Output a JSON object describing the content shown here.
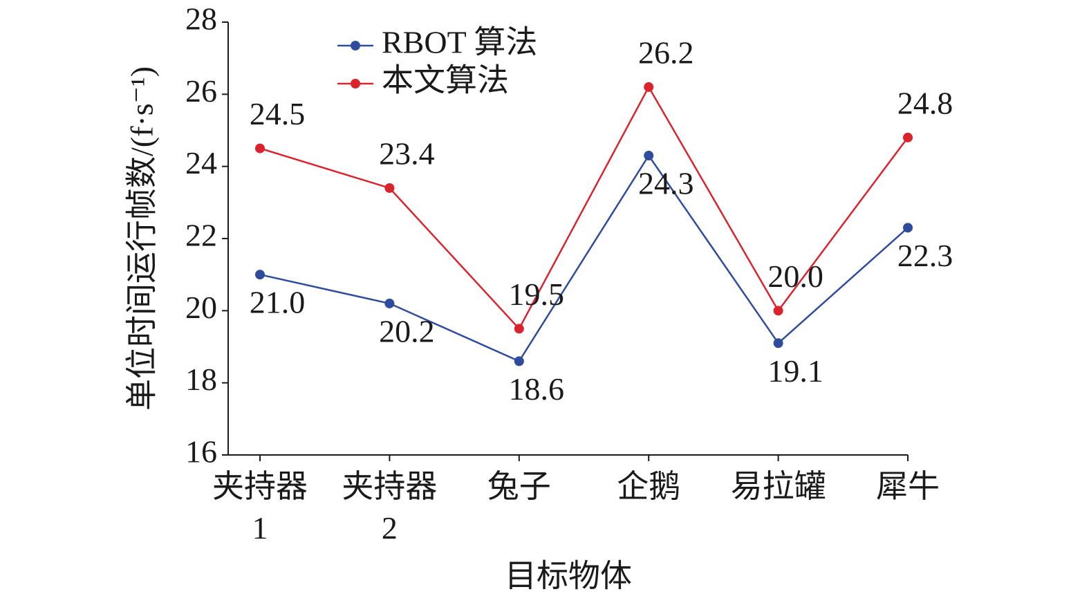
{
  "chart_data": {
    "type": "line",
    "x_label": "目标物体",
    "y_label": "单位时间运行帧数/(f·s⁻¹)",
    "categories": [
      "夹持器 1",
      "夹持器 2",
      "兔子",
      "企鹅",
      "易拉罐",
      "犀牛"
    ],
    "series": [
      {
        "name": "RBOT 算法",
        "color": "#2f4b9b",
        "values": [
          21.0,
          20.2,
          18.6,
          24.3,
          19.1,
          22.3
        ],
        "value_labels": [
          "21.0",
          "20.2",
          "18.6",
          "24.3",
          "19.1",
          "22.3"
        ]
      },
      {
        "name": "本文算法",
        "color": "#d9232d",
        "values": [
          24.5,
          23.4,
          19.5,
          26.2,
          20.0,
          24.8
        ],
        "value_labels": [
          "24.5",
          "23.4",
          "19.5",
          "26.2",
          "20.0",
          "24.8"
        ]
      }
    ],
    "ylim": [
      16,
      28
    ],
    "yticks": [
      16,
      18,
      20,
      22,
      24,
      26,
      28
    ],
    "legend": "upper-left"
  }
}
